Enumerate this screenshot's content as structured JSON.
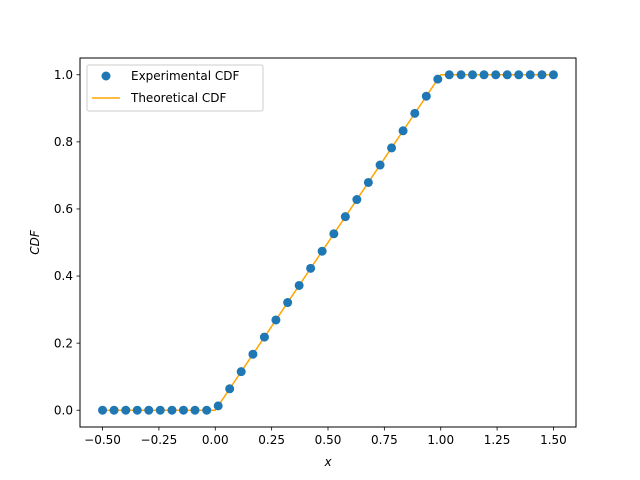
{
  "chart_data": {
    "type": "scatter",
    "title": "",
    "xlabel": "x",
    "ylabel": "CDF",
    "xlim": [
      -0.6,
      1.6
    ],
    "ylim": [
      -0.05,
      1.05
    ],
    "xticks": [
      -0.5,
      -0.25,
      0.0,
      0.25,
      0.5,
      0.75,
      1.0,
      1.25,
      1.5
    ],
    "xtick_labels": [
      "−0.50",
      "−0.25",
      "0.00",
      "0.25",
      "0.50",
      "0.75",
      "1.00",
      "1.25",
      "1.50"
    ],
    "yticks": [
      0.0,
      0.2,
      0.4,
      0.6,
      0.8,
      1.0
    ],
    "ytick_labels": [
      "0.0",
      "0.2",
      "0.4",
      "0.6",
      "0.8",
      "1.0"
    ],
    "grid": false,
    "legend_position": "top-left",
    "series": [
      {
        "name": "Experimental CDF",
        "kind": "scatter",
        "color": "#1f77b4",
        "x": [
          -0.5,
          -0.449,
          -0.397,
          -0.346,
          -0.295,
          -0.244,
          -0.192,
          -0.141,
          -0.09,
          -0.038,
          0.013,
          0.064,
          0.115,
          0.167,
          0.218,
          0.269,
          0.321,
          0.372,
          0.423,
          0.474,
          0.526,
          0.577,
          0.628,
          0.679,
          0.731,
          0.782,
          0.833,
          0.885,
          0.936,
          0.987,
          1.038,
          1.09,
          1.141,
          1.192,
          1.244,
          1.295,
          1.346,
          1.397,
          1.449,
          1.5
        ],
        "y": [
          0.0,
          0.0,
          0.0,
          0.0,
          0.0,
          0.0,
          0.0,
          0.0,
          0.0,
          0.0,
          0.013,
          0.064,
          0.115,
          0.167,
          0.218,
          0.269,
          0.321,
          0.372,
          0.423,
          0.474,
          0.526,
          0.577,
          0.628,
          0.679,
          0.731,
          0.782,
          0.833,
          0.885,
          0.936,
          0.987,
          1.0,
          1.0,
          1.0,
          1.0,
          1.0,
          1.0,
          1.0,
          1.0,
          1.0,
          1.0
        ]
      },
      {
        "name": "Theoretical CDF",
        "kind": "line",
        "color": "#ffa500",
        "x": [
          -0.5,
          0.0,
          1.0,
          1.5
        ],
        "y": [
          0.0,
          0.0,
          1.0,
          1.0
        ]
      }
    ]
  }
}
